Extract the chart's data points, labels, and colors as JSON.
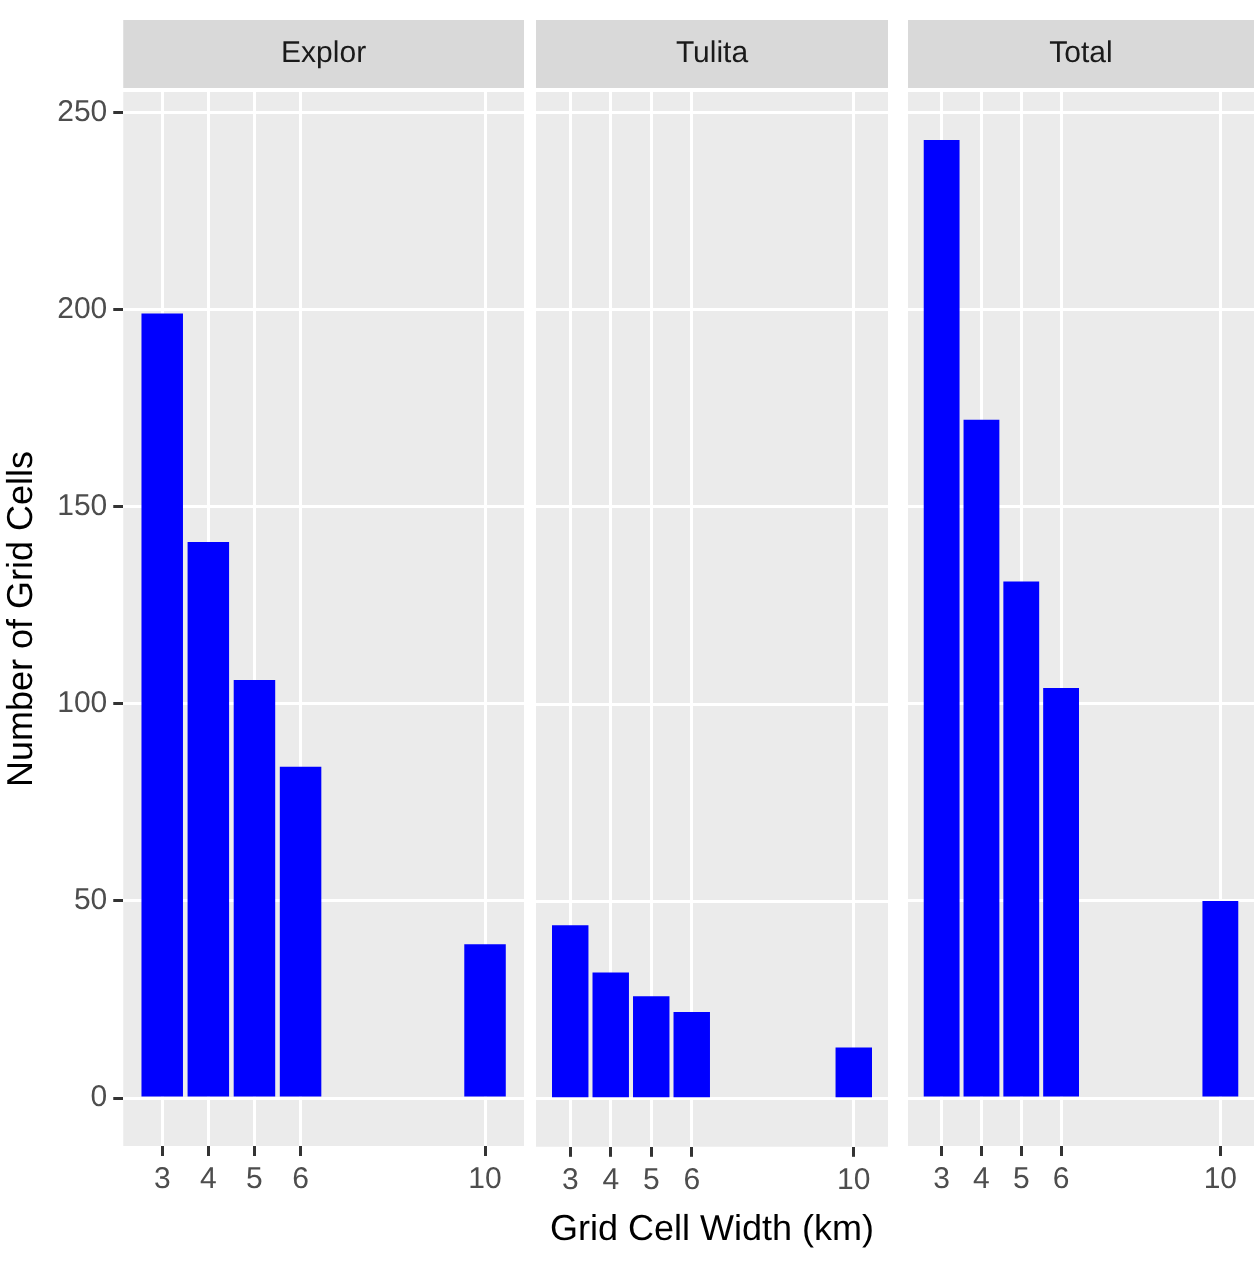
{
  "chart_data": [
    {
      "type": "bar",
      "title": "Explor",
      "ylabel": "Number of Grid Cells",
      "x": [
        3,
        4,
        5,
        6,
        10
      ],
      "values": [
        199,
        141,
        106,
        84,
        39
      ],
      "color": "#0000ff",
      "xlim": [
        2.155,
        10.845
      ],
      "xticks": [
        3,
        4,
        5,
        6,
        10
      ],
      "ylim": [
        -12.15,
        255.15
      ],
      "yticks": [
        0,
        50,
        100,
        150,
        200,
        250
      ],
      "grid": true
    },
    {
      "type": "bar",
      "title": "Tulita",
      "xlabel": "Grid Cell Width (km)",
      "x": [
        3,
        4,
        5,
        6,
        10
      ],
      "values": [
        44,
        32,
        26,
        22,
        13
      ],
      "color": "#0000ff",
      "xlim": [
        2.155,
        10.845
      ],
      "xticks": [
        3,
        4,
        5,
        6,
        10
      ],
      "ylim": [
        -12.15,
        255.15
      ],
      "yticks": [
        0,
        50,
        100,
        150,
        200,
        250
      ],
      "grid": true,
      "tick_labels": "x"
    },
    {
      "type": "bar",
      "title": "Total",
      "x": [
        3,
        4,
        5,
        6,
        10
      ],
      "values": [
        243,
        172,
        131,
        104,
        50
      ],
      "color": "#0000ff",
      "xlim": [
        2.155,
        10.845
      ],
      "xticks": [
        3,
        4,
        5,
        6,
        10
      ],
      "ylim": [
        -12.15,
        255.15
      ],
      "yticks": [
        0,
        50,
        100,
        150,
        200,
        250
      ],
      "grid": true,
      "tick_labels": "x"
    }
  ]
}
